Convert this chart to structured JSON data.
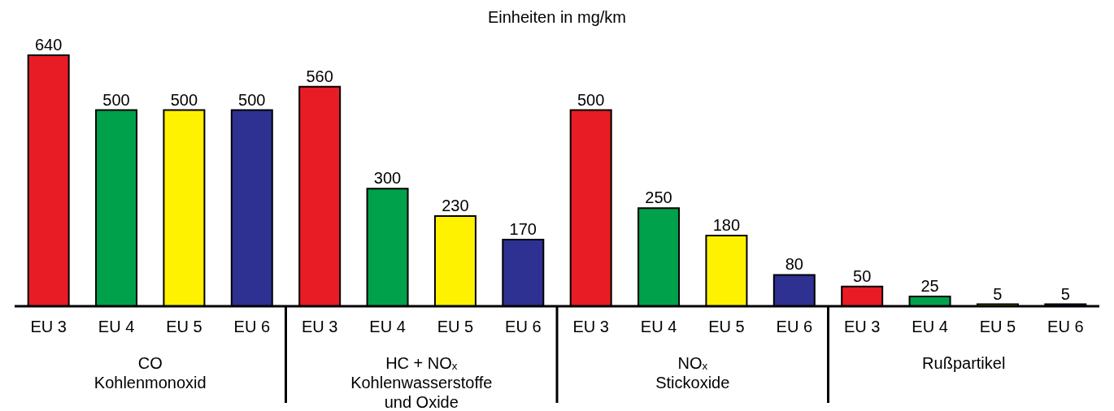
{
  "chart_data": {
    "type": "bar",
    "title": "Einheiten in mg/km",
    "categories": [
      "EU 3",
      "EU 4",
      "EU 5",
      "EU 6",
      "EU 3",
      "EU 4",
      "EU 5",
      "EU 6",
      "EU 3",
      "EU 4",
      "EU 5",
      "EU 6",
      "EU 3",
      "EU 4",
      "EU 5",
      "EU 6"
    ],
    "values": [
      640,
      500,
      500,
      500,
      560,
      300,
      230,
      170,
      500,
      250,
      180,
      80,
      50,
      25,
      5,
      5
    ],
    "colors": [
      "#e81c24",
      "#00a14b",
      "#fff200",
      "#2e3192",
      "#e81c24",
      "#00a14b",
      "#fff200",
      "#2e3192",
      "#e81c24",
      "#00a14b",
      "#fff200",
      "#2e3192",
      "#e81c24",
      "#00a14b",
      "#fff200",
      "#2e3192"
    ],
    "data_labels": true,
    "grid": false,
    "legend": false,
    "annotations": [
      "CO\nKohlenmonoxid",
      "HC + NOₓ\nKohlenwasserstoffe\nund Oxide",
      "NOₓ\nStickoxide",
      "Rußpartikel"
    ]
  }
}
